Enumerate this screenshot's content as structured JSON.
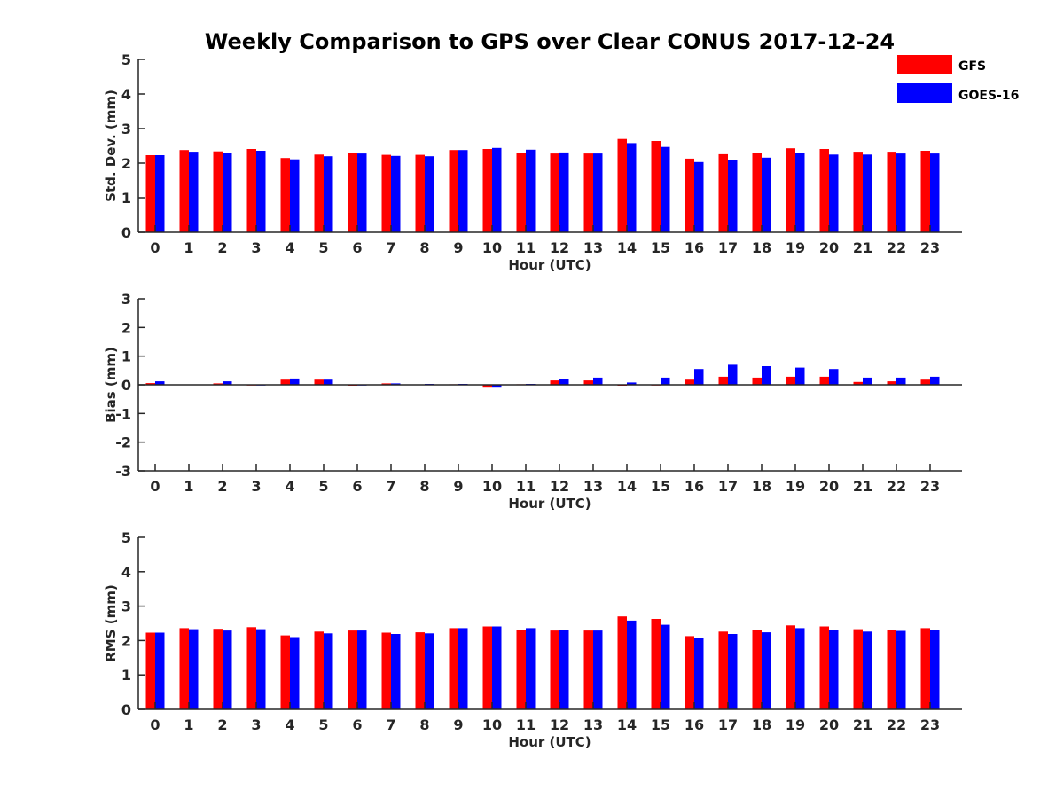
{
  "title": "Weekly Comparison to GPS over Clear CONUS 2017-12-24",
  "colors": {
    "GFS": "#ff0000",
    "GOES-16": "#0000ff"
  },
  "legend": {
    "position": "top-right",
    "entries": [
      "GFS",
      "GOES-16"
    ]
  },
  "chart_data": [
    {
      "type": "bar",
      "ylabel": "Std. Dev. (mm)",
      "xlabel": "Hour (UTC)",
      "ylim": [
        0,
        5
      ],
      "yticks": [
        0,
        1,
        2,
        3,
        4,
        5
      ],
      "categories": [
        "0",
        "1",
        "2",
        "3",
        "4",
        "5",
        "6",
        "7",
        "8",
        "9",
        "10",
        "11",
        "12",
        "13",
        "14",
        "15",
        "16",
        "17",
        "18",
        "19",
        "20",
        "21",
        "22",
        "23"
      ],
      "series": [
        {
          "name": "GFS",
          "values": [
            2.23,
            2.38,
            2.34,
            2.41,
            2.15,
            2.25,
            2.3,
            2.24,
            2.24,
            2.38,
            2.41,
            2.3,
            2.28,
            2.28,
            2.7,
            2.64,
            2.13,
            2.26,
            2.3,
            2.43,
            2.41,
            2.33,
            2.33,
            2.36
          ]
        },
        {
          "name": "GOES-16",
          "values": [
            2.23,
            2.33,
            2.3,
            2.36,
            2.11,
            2.2,
            2.28,
            2.21,
            2.2,
            2.38,
            2.44,
            2.39,
            2.31,
            2.28,
            2.58,
            2.47,
            2.03,
            2.08,
            2.16,
            2.3,
            2.25,
            2.25,
            2.28,
            2.28
          ]
        }
      ]
    },
    {
      "type": "bar",
      "ylabel": "Bias (mm)",
      "xlabel": "Hour (UTC)",
      "ylim": [
        -3,
        3
      ],
      "yticks": [
        -3,
        -2,
        -1,
        0,
        1,
        2,
        3
      ],
      "categories": [
        "0",
        "1",
        "2",
        "3",
        "4",
        "5",
        "6",
        "7",
        "8",
        "9",
        "10",
        "11",
        "12",
        "13",
        "14",
        "15",
        "16",
        "17",
        "18",
        "19",
        "20",
        "21",
        "22",
        "23"
      ],
      "series": [
        {
          "name": "GFS",
          "values": [
            0.06,
            0.01,
            0.05,
            0.0,
            0.18,
            0.18,
            -0.03,
            0.05,
            0.01,
            0.02,
            -0.1,
            0.02,
            0.15,
            0.15,
            -0.03,
            0.0,
            0.18,
            0.28,
            0.25,
            0.28,
            0.28,
            0.1,
            0.12,
            0.18
          ]
        },
        {
          "name": "GOES-16",
          "values": [
            0.12,
            0.01,
            0.12,
            0.0,
            0.22,
            0.18,
            0.0,
            0.05,
            0.03,
            0.03,
            -0.1,
            0.03,
            0.2,
            0.25,
            0.08,
            0.25,
            0.55,
            0.7,
            0.65,
            0.6,
            0.55,
            0.25,
            0.25,
            0.28
          ]
        }
      ]
    },
    {
      "type": "bar",
      "ylabel": "RMS (mm)",
      "xlabel": "Hour (UTC)",
      "ylim": [
        0,
        5
      ],
      "yticks": [
        0,
        1,
        2,
        3,
        4,
        5
      ],
      "categories": [
        "0",
        "1",
        "2",
        "3",
        "4",
        "5",
        "6",
        "7",
        "8",
        "9",
        "10",
        "11",
        "12",
        "13",
        "14",
        "15",
        "16",
        "17",
        "18",
        "19",
        "20",
        "21",
        "22",
        "23"
      ],
      "series": [
        {
          "name": "GFS",
          "values": [
            2.23,
            2.36,
            2.34,
            2.39,
            2.15,
            2.26,
            2.29,
            2.23,
            2.24,
            2.36,
            2.41,
            2.31,
            2.29,
            2.29,
            2.7,
            2.63,
            2.13,
            2.26,
            2.31,
            2.44,
            2.41,
            2.33,
            2.31,
            2.36
          ]
        },
        {
          "name": "GOES-16",
          "values": [
            2.23,
            2.33,
            2.29,
            2.33,
            2.1,
            2.21,
            2.29,
            2.19,
            2.21,
            2.36,
            2.41,
            2.36,
            2.31,
            2.29,
            2.58,
            2.46,
            2.08,
            2.19,
            2.24,
            2.36,
            2.31,
            2.26,
            2.28,
            2.31
          ]
        }
      ]
    }
  ]
}
